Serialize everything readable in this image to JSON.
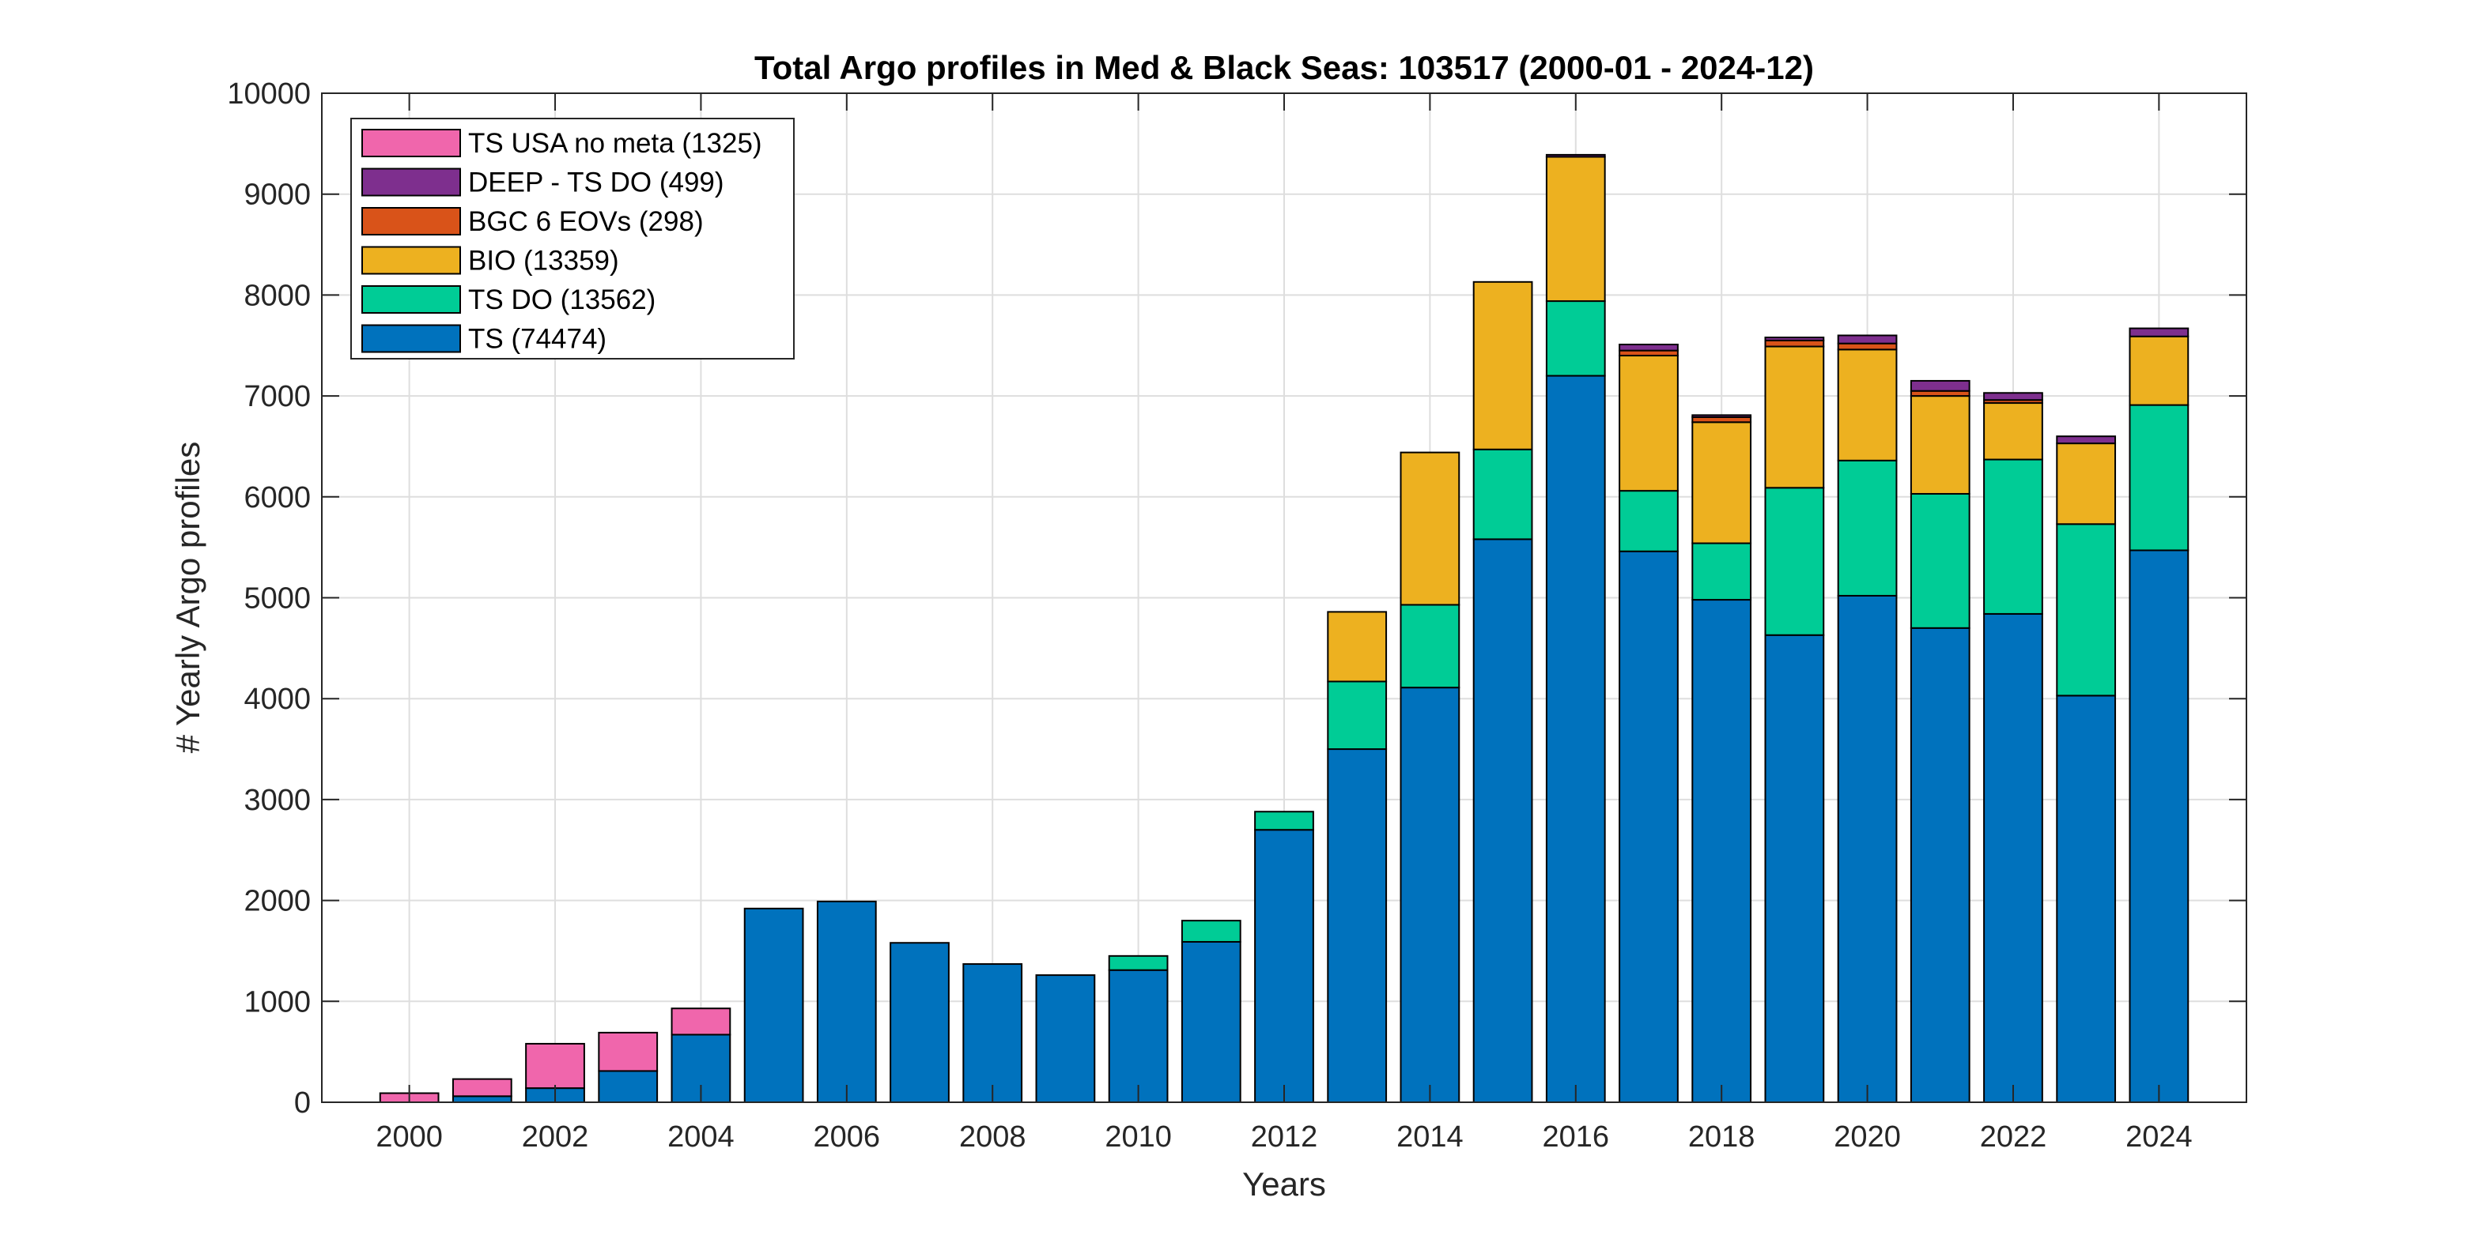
{
  "chart_data": {
    "type": "bar",
    "stacked": true,
    "title": "Total Argo profiles in Med & Black Seas: 103517 (2000-01 - 2024-12)",
    "xlabel": "Years",
    "ylabel": "# Yearly Argo profiles",
    "ylim": [
      0,
      10000
    ],
    "yticks": [
      "0",
      "1000",
      "2000",
      "3000",
      "4000",
      "5000",
      "6000",
      "7000",
      "8000",
      "9000",
      "10000"
    ],
    "xticks": [
      "2000",
      "2002",
      "2004",
      "2006",
      "2008",
      "2010",
      "2012",
      "2014",
      "2016",
      "2018",
      "2020",
      "2022",
      "2024"
    ],
    "grid": true,
    "legend_position": "top-left",
    "categories": [
      2000,
      2001,
      2002,
      2003,
      2004,
      2005,
      2006,
      2007,
      2008,
      2009,
      2010,
      2011,
      2012,
      2013,
      2014,
      2015,
      2016,
      2017,
      2018,
      2019,
      2020,
      2021,
      2022,
      2023,
      2024
    ],
    "series": [
      {
        "name": "TS (74474)",
        "color": "#0072BD",
        "values": [
          0,
          60,
          140,
          310,
          670,
          1920,
          1990,
          1580,
          1370,
          1260,
          1310,
          1590,
          2700,
          3500,
          4110,
          5580,
          7200,
          5460,
          4980,
          4630,
          5020,
          4700,
          4840,
          4030,
          5470
        ]
      },
      {
        "name": "TS DO (13562)",
        "color": "#00CC96",
        "values": [
          0,
          0,
          0,
          0,
          0,
          0,
          0,
          0,
          0,
          0,
          140,
          210,
          180,
          670,
          820,
          890,
          740,
          600,
          560,
          1460,
          1340,
          1330,
          1530,
          1700,
          1440
        ]
      },
      {
        "name": "BIO (13359)",
        "color": "#EDB120",
        "values": [
          0,
          0,
          0,
          0,
          0,
          0,
          0,
          0,
          0,
          0,
          0,
          0,
          0,
          690,
          1510,
          1660,
          1430,
          1340,
          1200,
          1400,
          1100,
          970,
          560,
          800,
          680
        ]
      },
      {
        "name": "BGC 6 EOVs (298)",
        "color": "#D95319",
        "values": [
          0,
          0,
          0,
          0,
          0,
          0,
          0,
          0,
          0,
          0,
          0,
          0,
          0,
          0,
          0,
          0,
          0,
          50,
          50,
          60,
          60,
          50,
          30,
          0,
          0
        ]
      },
      {
        "name": "DEEP - TS DO (499)",
        "color": "#7E2F8E",
        "values": [
          0,
          0,
          0,
          0,
          0,
          0,
          0,
          0,
          0,
          0,
          0,
          0,
          0,
          0,
          0,
          0,
          20,
          60,
          20,
          30,
          80,
          100,
          70,
          70,
          80
        ]
      },
      {
        "name": "TS USA no meta (1325)",
        "color": "#F066AC",
        "values": [
          90,
          170,
          440,
          380,
          260,
          0,
          0,
          0,
          0,
          0,
          0,
          0,
          0,
          0,
          0,
          0,
          0,
          0,
          0,
          0,
          0,
          0,
          0,
          0,
          0
        ]
      }
    ]
  }
}
